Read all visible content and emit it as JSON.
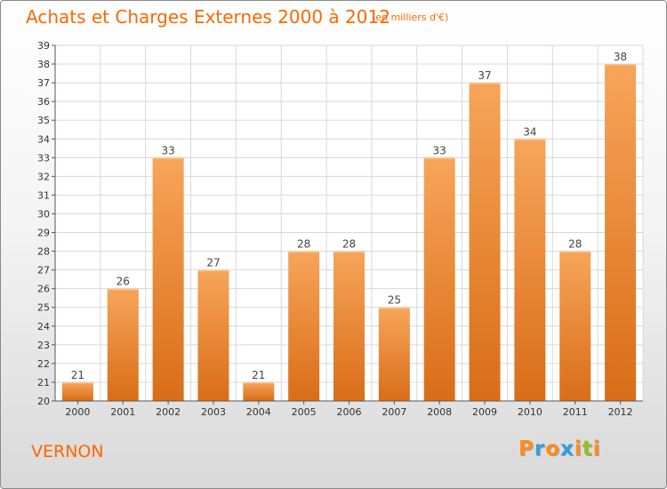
{
  "chart_data": {
    "type": "bar",
    "title": "Achats et Charges Externes 2000 à 2012",
    "subtitle": "(en milliers d'€)",
    "categories": [
      "2000",
      "2001",
      "2002",
      "2003",
      "2004",
      "2005",
      "2006",
      "2007",
      "2008",
      "2009",
      "2010",
      "2011",
      "2012"
    ],
    "values": [
      21,
      26,
      33,
      27,
      21,
      28,
      28,
      25,
      33,
      37,
      34,
      28,
      38
    ],
    "ylim": [
      20,
      39
    ],
    "yticks": [
      20,
      21,
      22,
      23,
      24,
      25,
      26,
      27,
      28,
      29,
      30,
      31,
      32,
      33,
      34,
      35,
      36,
      37,
      38,
      39
    ],
    "grid": true,
    "data_labels": true
  },
  "footer": {
    "city": "VERNON",
    "logo": [
      "P",
      "r",
      "o",
      "x",
      "i",
      "t",
      "i"
    ]
  },
  "colors": {
    "title": "#ff6600",
    "bar_top": "#f7a55a",
    "bar_bottom": "#d96d17",
    "grid": "#d8d8d8",
    "logo": [
      "#ff8c1a",
      "#2e9ee6",
      "#ff8c1a",
      "#2e9ee6",
      "#ff8c1a",
      "#94c11f",
      "#ff8c1a"
    ]
  }
}
